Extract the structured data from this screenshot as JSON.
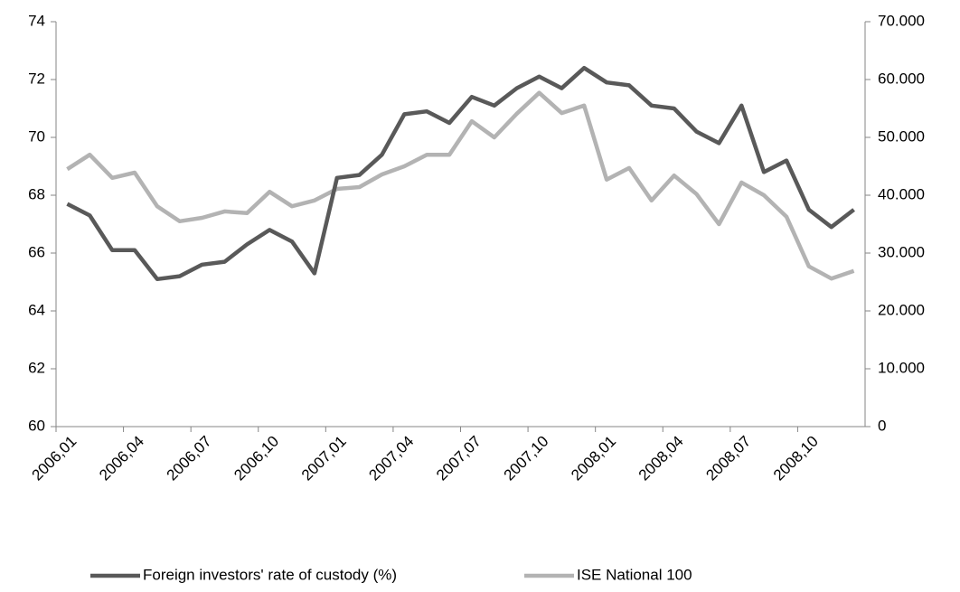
{
  "chart_data": {
    "type": "line",
    "categories": [
      "2006,01",
      null,
      null,
      "2006,04",
      null,
      null,
      "2006,07",
      null,
      null,
      "2006,10",
      null,
      null,
      "2007,01",
      null,
      null,
      "2007,04",
      null,
      null,
      "2007,07",
      null,
      null,
      "2007,10",
      null,
      null,
      "2008,01",
      null,
      null,
      "2008,04",
      null,
      null,
      "2008,07",
      null,
      null,
      "2008,10",
      null,
      null
    ],
    "series": [
      {
        "name": "Foreign investors' rate of custody (%)",
        "color": "#595959",
        "values": [
          67.7,
          67.3,
          66.1,
          66.1,
          65.1,
          65.2,
          65.6,
          65.7,
          66.3,
          66.8,
          66.4,
          65.3,
          68.6,
          68.7,
          69.4,
          70.8,
          70.9,
          70.5,
          71.4,
          71.1,
          71.7,
          72.1,
          71.7,
          72.4,
          71.9,
          71.8,
          71.1,
          71.0,
          70.2,
          69.8,
          71.1,
          68.8,
          69.2,
          67.5,
          66.9,
          67.5
        ]
      },
      {
        "name": "ISE National 100",
        "color": "#b3b3b3",
        "axis": "y2",
        "values": [
          44500,
          47000,
          43000,
          43900,
          38100,
          35500,
          36100,
          37200,
          36900,
          40600,
          38100,
          39100,
          41100,
          41400,
          43600,
          45000,
          47000,
          47000,
          52800,
          50000,
          54100,
          57700,
          54200,
          55500,
          42700,
          44700,
          39100,
          43400,
          40200,
          35000,
          42200,
          40000,
          36300,
          27700,
          25600,
          26900
        ]
      }
    ],
    "ylim": [
      60,
      74
    ],
    "yticks": [
      60,
      62,
      64,
      66,
      68,
      70,
      72,
      74
    ],
    "y2lim": [
      0,
      70000
    ],
    "y2ticks": [
      0,
      {
        "value": 10000,
        "label": "10.000"
      },
      {
        "value": 20000,
        "label": "20.000"
      },
      {
        "value": 30000,
        "label": "30.000"
      },
      {
        "value": 40000,
        "label": "40.000"
      },
      {
        "value": 50000,
        "label": "50.000"
      },
      {
        "value": 60000,
        "label": "60.000"
      },
      {
        "value": 70000,
        "label": "70.000"
      }
    ],
    "legend": "bottom",
    "grid": false
  }
}
